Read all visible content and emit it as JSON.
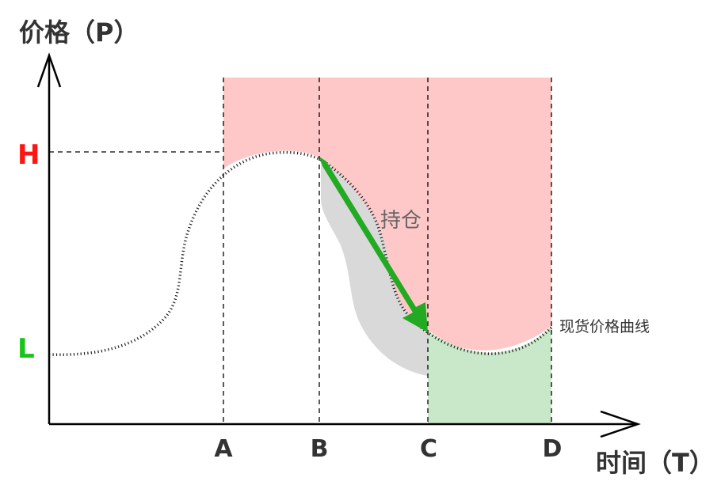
{
  "axes": {
    "y_title": "价格（P）",
    "x_title": "时间（T）"
  },
  "y_marks": [
    {
      "key": "H",
      "label": "H",
      "color": "#ff1414"
    },
    {
      "key": "L",
      "label": "L",
      "color": "#19c419"
    }
  ],
  "x_marks": [
    "A",
    "B",
    "C",
    "D"
  ],
  "annotations": {
    "holding": "持仓",
    "curve": "现货价格曲线"
  },
  "colors": {
    "red_zone": "#ffc8c8",
    "green_zone": "#c9e8c9",
    "gray_zone": "#d9d9d9",
    "arrow": "#22aa22",
    "axis": "#000000",
    "text": "#333333"
  }
}
